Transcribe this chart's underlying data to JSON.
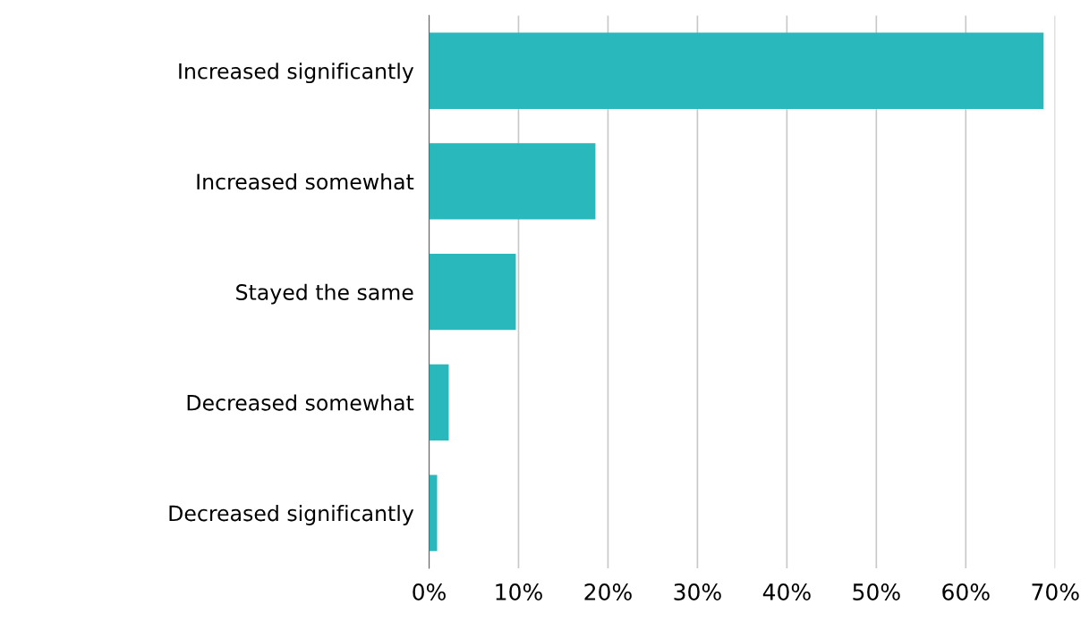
{
  "chart_data": {
    "type": "bar",
    "orientation": "horizontal",
    "categories": [
      "Increased significantly",
      "Increased somewhat",
      "Stayed the same",
      "Decreased somewhat",
      "Decreased significantly"
    ],
    "values": [
      68.7,
      18.6,
      9.7,
      2.2,
      0.9
    ],
    "color": "#29b9bd",
    "xlim": [
      0,
      70
    ],
    "xticks": [
      {
        "value": 0,
        "label": "0%"
      },
      {
        "value": 10,
        "label": "10%"
      },
      {
        "value": 20,
        "label": "20%"
      },
      {
        "value": 30,
        "label": "30%"
      },
      {
        "value": 40,
        "label": "40%"
      },
      {
        "value": 50,
        "label": "50%"
      },
      {
        "value": 60,
        "label": "60%"
      },
      {
        "value": 70,
        "label": "70%"
      }
    ],
    "grid": "x"
  }
}
